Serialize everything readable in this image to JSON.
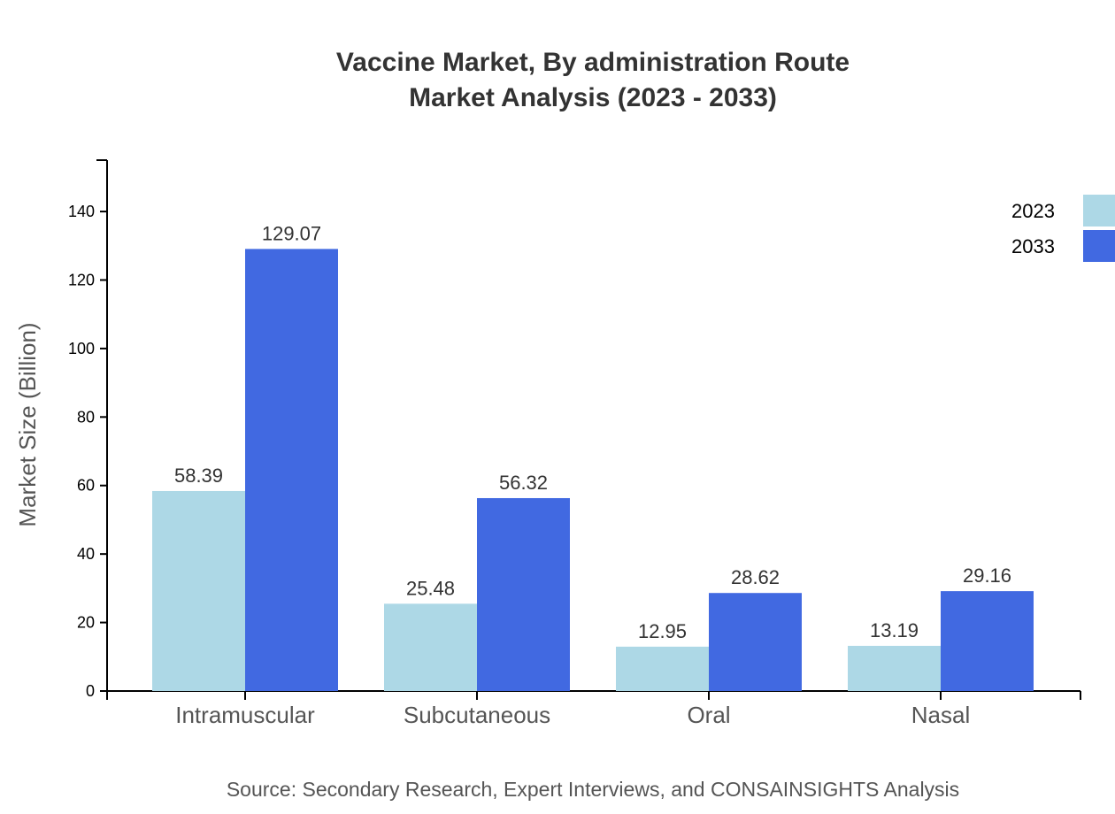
{
  "chart_data": {
    "type": "bar",
    "title": [
      "Vaccine Market, By administration Route",
      "Market Analysis (2023 - 2033)"
    ],
    "xlabel": "",
    "ylabel": "Market Size (Billion)",
    "ylim": [
      0,
      155
    ],
    "yticks": [
      0,
      20,
      40,
      60,
      80,
      100,
      120,
      140
    ],
    "grid": false,
    "legend_position": "top-right",
    "categories": [
      "Intramuscular",
      "Subcutaneous",
      "Oral",
      "Nasal"
    ],
    "series": [
      {
        "name": "2023",
        "color": "#add8e6",
        "values": [
          58.39,
          25.48,
          12.95,
          13.19
        ]
      },
      {
        "name": "2033",
        "color": "#4169e1",
        "values": [
          129.07,
          56.32,
          28.62,
          29.16
        ]
      }
    ],
    "source": "Source: Secondary Research, Expert Interviews, and CONSAINSIGHTS Analysis"
  }
}
